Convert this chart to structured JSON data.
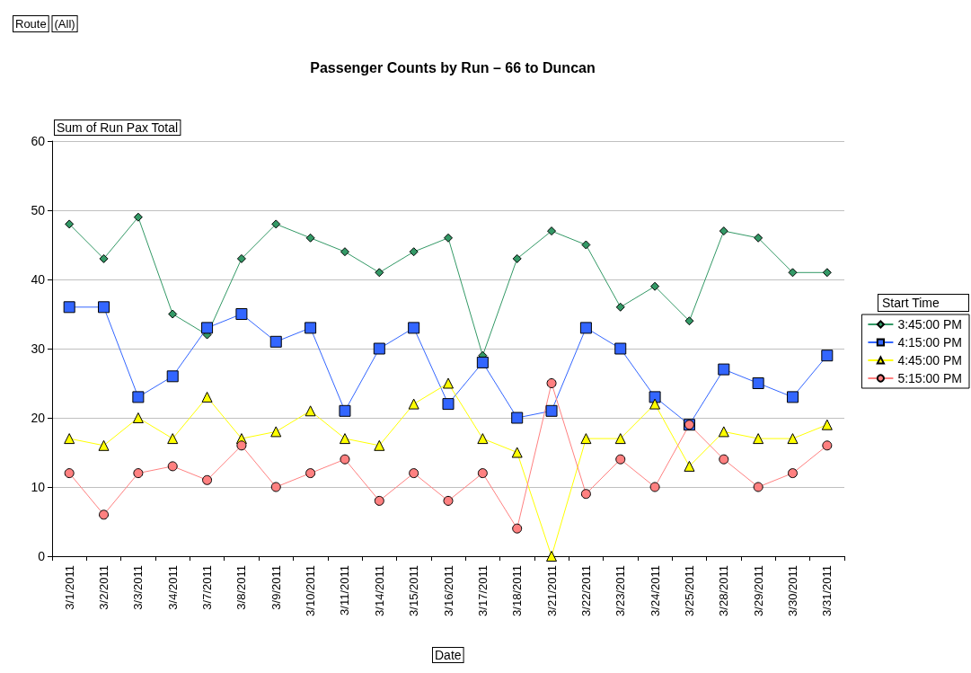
{
  "chart_data": {
    "type": "line",
    "title": "Passenger Counts by Run – 66 to Duncan",
    "xlabel": "Date",
    "ylabel": "Sum of Run Pax Total",
    "legend_title": "Start Time",
    "annotations": [
      "Route",
      "(All)"
    ],
    "categories": [
      "3/1/2011",
      "3/2/2011",
      "3/3/2011",
      "3/4/2011",
      "3/7/2011",
      "3/8/2011",
      "3/9/2011",
      "3/10/2011",
      "3/11/2011",
      "3/14/2011",
      "3/15/2011",
      "3/16/2011",
      "3/17/2011",
      "3/18/2011",
      "3/21/2011",
      "3/22/2011",
      "3/23/2011",
      "3/24/2011",
      "3/25/2011",
      "3/28/2011",
      "3/29/2011",
      "3/30/2011",
      "3/31/2011"
    ],
    "series": [
      {
        "name": "3:45:00 PM",
        "color": "#339966",
        "marker": "diamond",
        "values": [
          48,
          43,
          49,
          35,
          32,
          43,
          48,
          46,
          44,
          41,
          44,
          46,
          29,
          43,
          47,
          45,
          36,
          39,
          34,
          47,
          46,
          41,
          41
        ]
      },
      {
        "name": "4:15:00 PM",
        "color": "#3366ff",
        "marker": "square",
        "values": [
          36,
          36,
          23,
          26,
          33,
          35,
          31,
          33,
          21,
          30,
          33,
          22,
          28,
          20,
          21,
          33,
          30,
          23,
          19,
          27,
          25,
          23,
          29
        ]
      },
      {
        "name": "4:45:00 PM",
        "color": "#ffff00",
        "marker": "triangle",
        "values": [
          17,
          16,
          20,
          17,
          23,
          17,
          18,
          21,
          17,
          16,
          22,
          25,
          17,
          15,
          0,
          17,
          17,
          22,
          13,
          18,
          17,
          17,
          19
        ]
      },
      {
        "name": "5:15:00 PM",
        "color": "#ff8080",
        "marker": "circle",
        "values": [
          12,
          6,
          12,
          13,
          11,
          16,
          10,
          12,
          14,
          8,
          12,
          8,
          12,
          4,
          25,
          9,
          14,
          10,
          19,
          14,
          10,
          12,
          16
        ]
      }
    ],
    "ylim": [
      0,
      60
    ],
    "yticks": [
      0,
      10,
      20,
      30,
      40,
      50,
      60
    ],
    "grid": "y",
    "legend": "right"
  }
}
